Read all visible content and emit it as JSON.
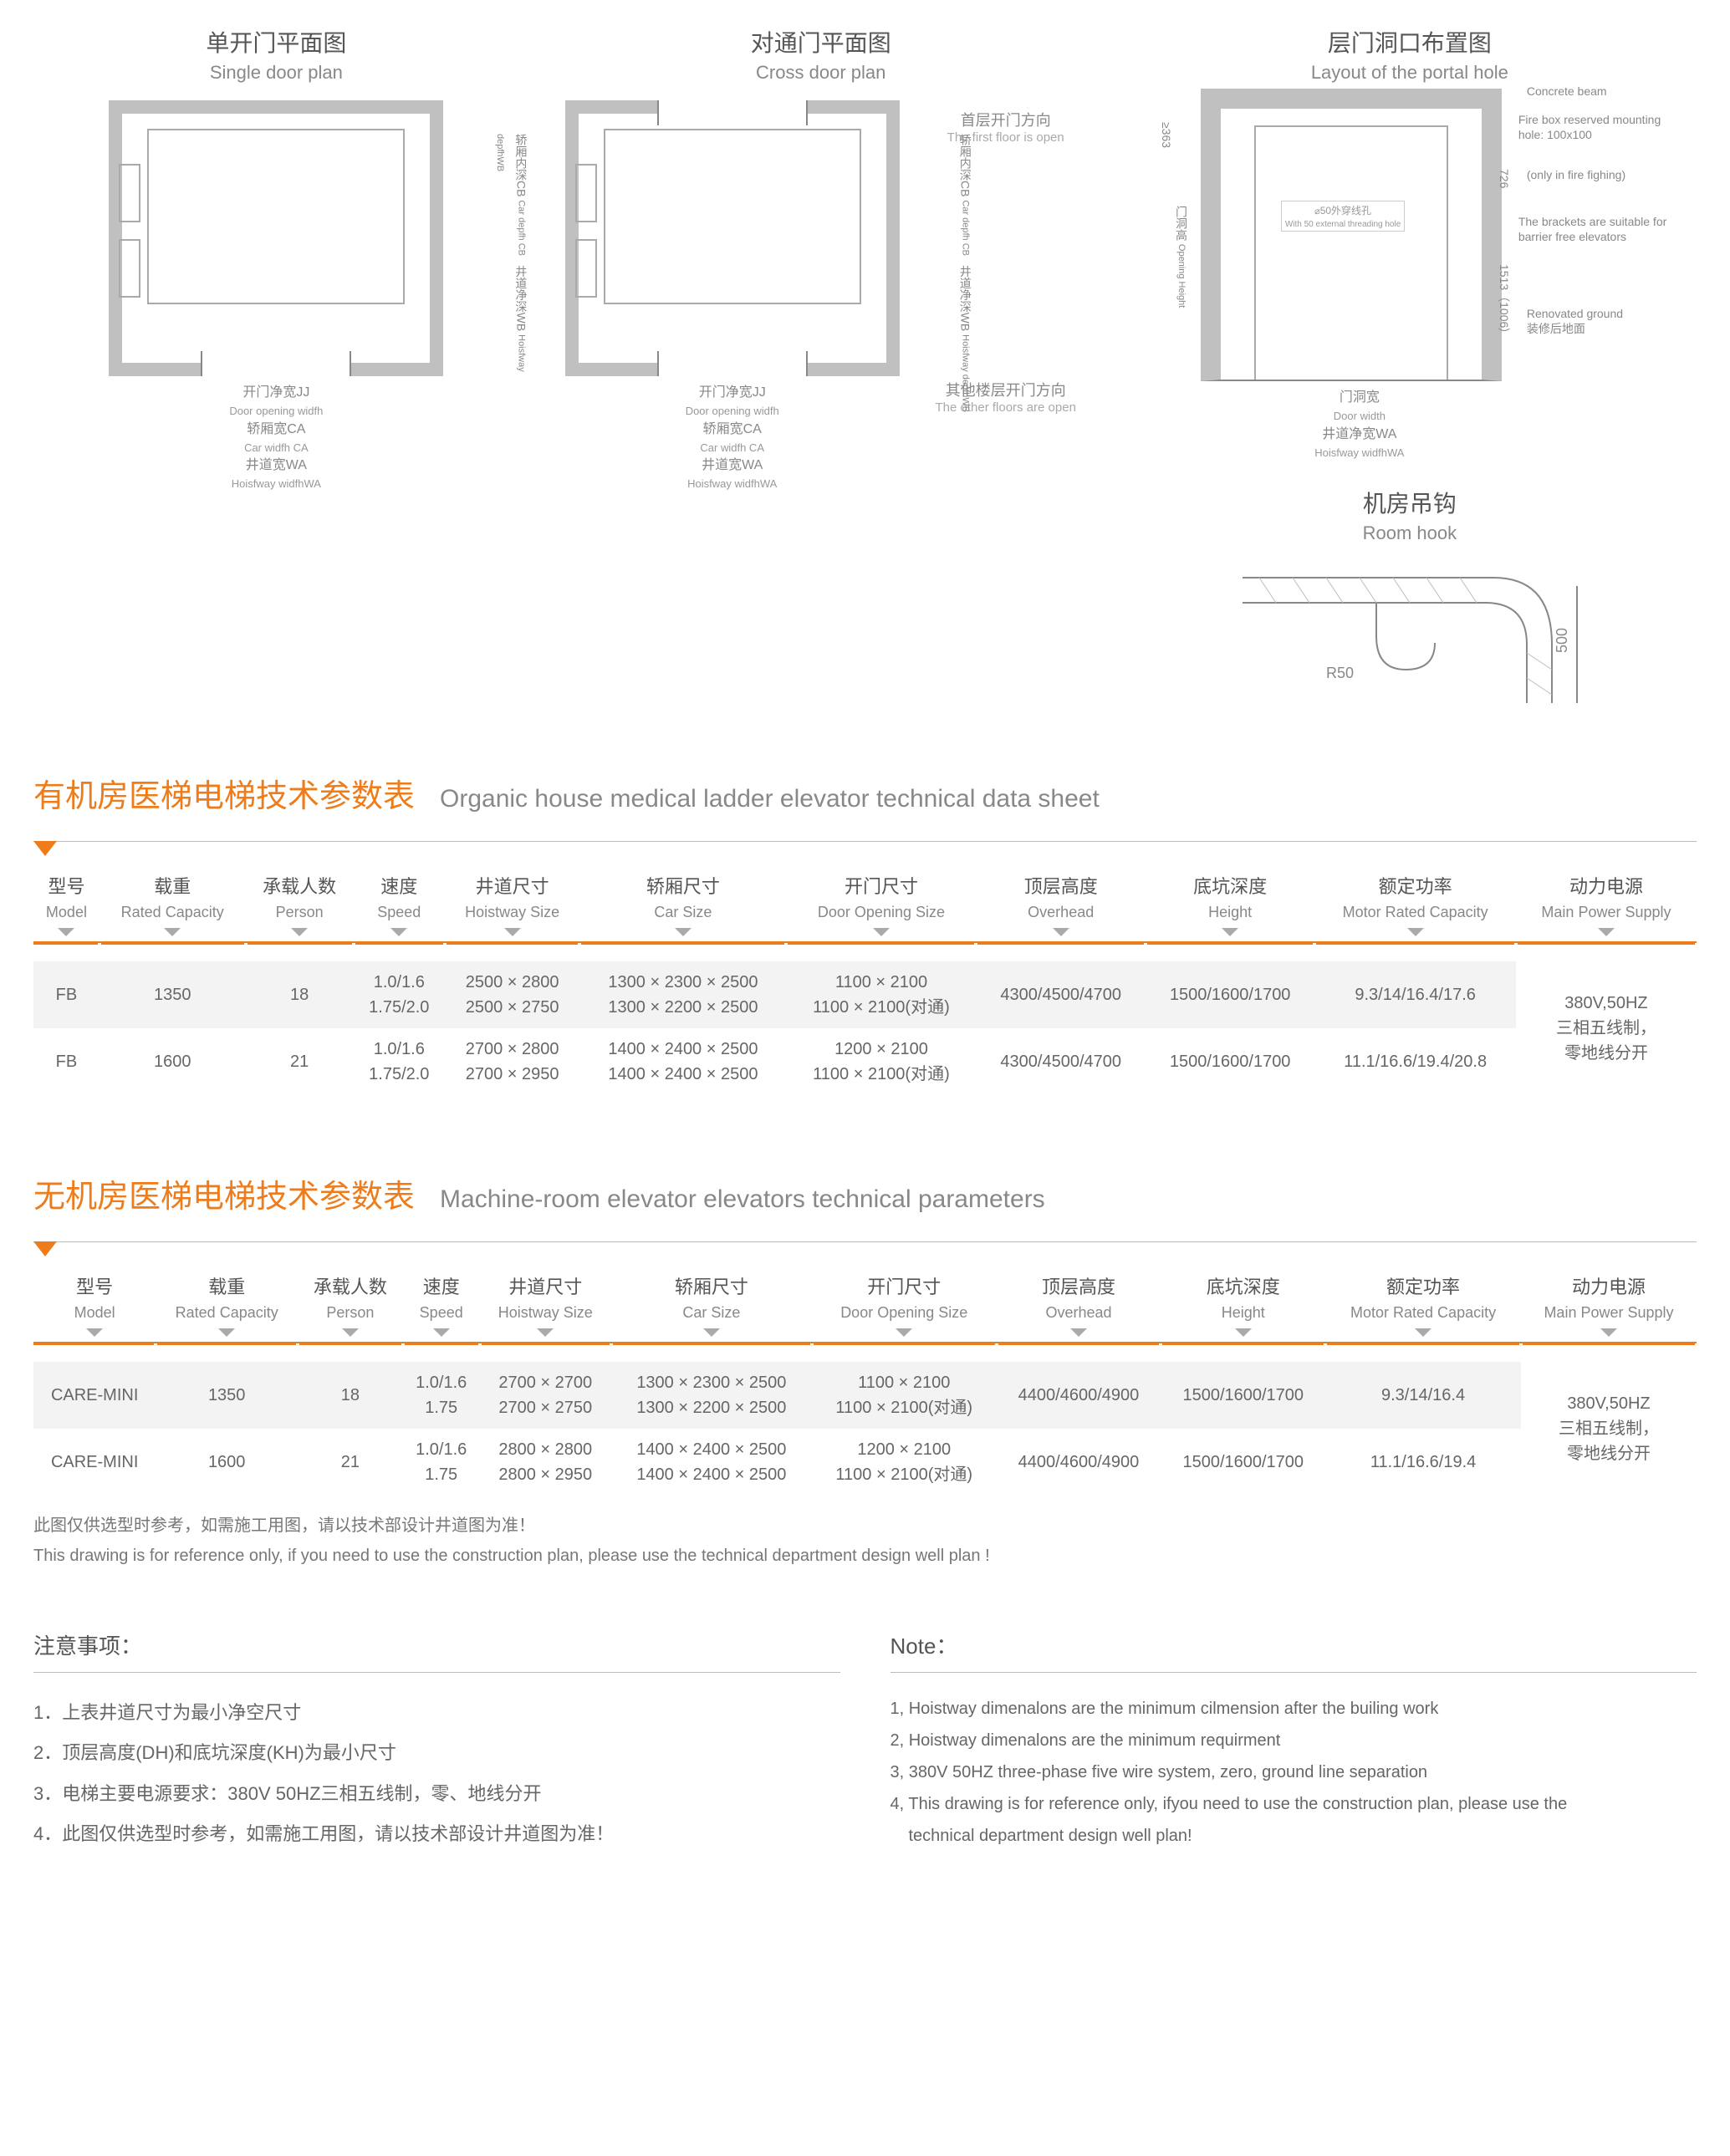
{
  "colors": {
    "accent": "#ef7c1a",
    "text": "#666666",
    "muted": "#888888",
    "divider": "#bbbbbb",
    "diagram_frame": "#c0c0c0"
  },
  "diagrams": {
    "single": {
      "title_cn": "单开门平面图",
      "title_en": "Single door plan",
      "lbl_jj_cn": "开门净宽JJ",
      "lbl_jj_en": "Door opening widfh",
      "lbl_ca_cn": "轿厢宽CA",
      "lbl_ca_en": "Car widfh CA",
      "lbl_wa_cn": "井道宽WA",
      "lbl_wa_en": "Hoisfway widfhWA",
      "lbl_cb_cn": "轿厢内深CB",
      "lbl_cb_en": "Car depfh CB",
      "lbl_wb_cn": "井道净深WB",
      "lbl_wb_en": "Hoisfway depfhWB"
    },
    "cross": {
      "title_cn": "对通门平面图",
      "title_en": "Cross door plan",
      "note1_cn": "首层开门方向",
      "note1_en": "The first floor is open",
      "note2_cn": "其他楼层开门方向",
      "note2_en": "The other floors are open"
    },
    "portal": {
      "title_cn": "层门洞口布置图",
      "title_en": "Layout of the portal hole",
      "ann_concrete": "Concrete beam",
      "ann_firebox": "Fire box reserved mounting hole: 100x100",
      "ann_fire": "(only in fire fighing)",
      "ann_brackets": "The brackets are suitable for barrier free elevators",
      "ann_ground_cn": "装修后地面",
      "ann_ground_en": "Renovated ground",
      "ann_thread_cn": "50外穿线孔",
      "ann_thread_en": "With 50 external threading hole",
      "dim_top": "≥363",
      "lbl_opening_cn": "门洞高",
      "lbl_opening_en": "Opening Height",
      "dim_726": "726",
      "dim_1513": "1513（1006）",
      "lbl_doorwidth_cn": "门洞宽",
      "lbl_doorwidth_en": "Door width",
      "lbl_wa_cn": "井道净宽WA",
      "lbl_wa_en": "Hoisfway widfhWA"
    },
    "hook": {
      "title_cn": "机房吊钩",
      "title_en": "Room hook",
      "dim_r": "R50",
      "dim_h": "500"
    }
  },
  "table1": {
    "heading_cn": "有机房医梯电梯技术参数表",
    "heading_en": "Organic house medical ladder elevator technical data sheet",
    "columns": [
      {
        "cn": "型号",
        "en": "Model"
      },
      {
        "cn": "载重",
        "en": "Rated Capacity"
      },
      {
        "cn": "承载人数",
        "en": "Person"
      },
      {
        "cn": "速度",
        "en": "Speed"
      },
      {
        "cn": "井道尺寸",
        "en": "Hoistway Size"
      },
      {
        "cn": "轿厢尺寸",
        "en": "Car Size"
      },
      {
        "cn": "开门尺寸",
        "en": "Door Opening Size"
      },
      {
        "cn": "顶层高度",
        "en": "Overhead"
      },
      {
        "cn": "底坑深度",
        "en": "Height"
      },
      {
        "cn": "额定功率",
        "en": "Motor Rated Capacity"
      },
      {
        "cn": "动力电源",
        "en": "Main Power Supply"
      }
    ],
    "rows": [
      [
        "FB",
        "1350",
        "18",
        "1.0/1.6\n1.75/2.0",
        "2500 × 2800\n2500 × 2750",
        "1300 × 2300 × 2500\n1300 × 2200 × 2500",
        "1100 × 2100\n1100 × 2100(对通)",
        "4300/4500/4700",
        "1500/1600/1700",
        "9.3/14/16.4/17.6",
        "380V,50HZ\n三相五线制，\n零地线分开"
      ],
      [
        "FB",
        "1600",
        "21",
        "1.0/1.6\n1.75/2.0",
        "2700 × 2800\n2700 × 2950",
        "1400 × 2400 × 2500\n1400 × 2400 × 2500",
        "1200 × 2100\n1100 × 2100(对通)",
        "4300/4500/4700",
        "1500/1600/1700",
        "11.1/16.6/19.4/20.8",
        ""
      ]
    ]
  },
  "table2": {
    "heading_cn": "无机房医梯电梯技术参数表",
    "heading_en": "Machine-room elevator elevators technical parameters",
    "rows": [
      [
        "CARE-MINI",
        "1350",
        "18",
        "1.0/1.6\n1.75",
        "2700 × 2700\n2700 × 2750",
        "1300 × 2300 × 2500\n1300 × 2200 × 2500",
        "1100 × 2100\n1100 × 2100(对通)",
        "4400/4600/4900",
        "1500/1600/1700",
        "9.3/14/16.4",
        "380V,50HZ\n三相五线制，\n零地线分开"
      ],
      [
        "CARE-MINI",
        "1600",
        "21",
        "1.0/1.6\n1.75",
        "2800 × 2800\n2800 × 2950",
        "1400 × 2400 × 2500\n1400 × 2400 × 2500",
        "1200 × 2100\n1100 × 2100(对通)",
        "4400/4600/4900",
        "1500/1600/1700",
        "11.1/16.6/19.4",
        ""
      ]
    ],
    "footnote_cn": "此图仅供选型时参考，如需施工用图，请以技术部设计井道图为准！",
    "footnote_en": "This drawing is for reference only, if you need to use the construction plan, please use the technical department design well plan !"
  },
  "notes": {
    "heading_cn": "注意事项：",
    "heading_en": "Note：",
    "items_cn": [
      "1．上表井道尺寸为最小净空尺寸",
      "2．顶层高度(DH)和底坑深度(KH)为最小尺寸",
      "3．电梯主要电源要求：380V 50HZ三相五线制，零、地线分开",
      "4．此图仅供选型时参考，如需施工用图，请以技术部设计井道图为准！"
    ],
    "items_en": [
      "1, Hoistway dimenalons are the minimum cilmension after the builing work",
      "2, Hoistway dimenalons are the minimum requirment",
      "3, 380V 50HZ three-phase five wire system, zero, ground line separation",
      "4, This drawing is for reference only, ifyou need to use the construction plan, please use the",
      "technical department design well plan!"
    ]
  }
}
